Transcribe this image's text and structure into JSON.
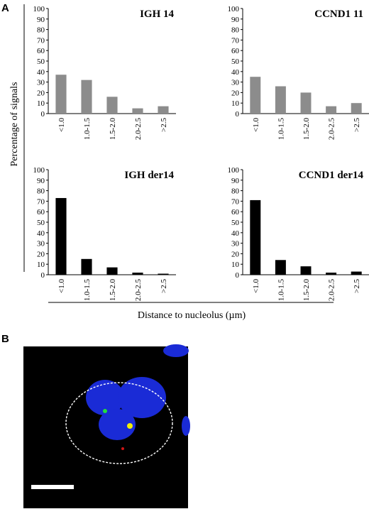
{
  "panels": {
    "a": "A",
    "b": "B"
  },
  "shared_axes": {
    "ylabel": "Percentage of signals",
    "xlabel": "Distance to nucleolus (µm)"
  },
  "chart_data": [
    {
      "type": "bar",
      "title": "IGH 14",
      "categories": [
        "<1.0",
        "1.0-1.5",
        "1.5-2.0",
        "2.0-2.5",
        ">2.5"
      ],
      "values": [
        37,
        32,
        16,
        5,
        7
      ],
      "ylim": [
        0,
        100
      ],
      "yticks": [
        0,
        10,
        20,
        30,
        40,
        50,
        60,
        70,
        80,
        90,
        100
      ],
      "bar_color": "#8c8c8c"
    },
    {
      "type": "bar",
      "title": "CCND1 11",
      "categories": [
        "<1.0",
        "1.0-1.5",
        "1.5-2.0",
        "2.0-2.5",
        ">2.5"
      ],
      "values": [
        35,
        26,
        20,
        7,
        10
      ],
      "ylim": [
        0,
        100
      ],
      "yticks": [
        0,
        10,
        20,
        30,
        40,
        50,
        60,
        70,
        80,
        90,
        100
      ],
      "bar_color": "#8c8c8c"
    },
    {
      "type": "bar",
      "title": "IGH der14",
      "categories": [
        "<1.0",
        "1.0-1.5",
        "1.5-2.0",
        "2.0-2.5",
        ">2.5"
      ],
      "values": [
        73,
        15,
        7,
        2,
        1
      ],
      "ylim": [
        0,
        100
      ],
      "yticks": [
        0,
        10,
        20,
        30,
        40,
        50,
        60,
        70,
        80,
        90,
        100
      ],
      "bar_color": "#000000"
    },
    {
      "type": "bar",
      "title": "CCND1 der14",
      "categories": [
        "<1.0",
        "1.0-1.5",
        "1.5-2.0",
        "2.0-2.5",
        ">2.5"
      ],
      "values": [
        71,
        14,
        8,
        2,
        3
      ],
      "ylim": [
        0,
        100
      ],
      "yticks": [
        0,
        10,
        20,
        30,
        40,
        50,
        60,
        70,
        80,
        90,
        100
      ],
      "bar_color": "#000000"
    }
  ],
  "micrograph": {
    "background": "#000000",
    "nucleus_color": "#1a2bd6",
    "outline_color": "#ffffff",
    "signal_green": "#22e03a",
    "signal_red": "#d01515",
    "signal_yellow": "#f4f000",
    "scale_bar_color": "#ffffff"
  }
}
